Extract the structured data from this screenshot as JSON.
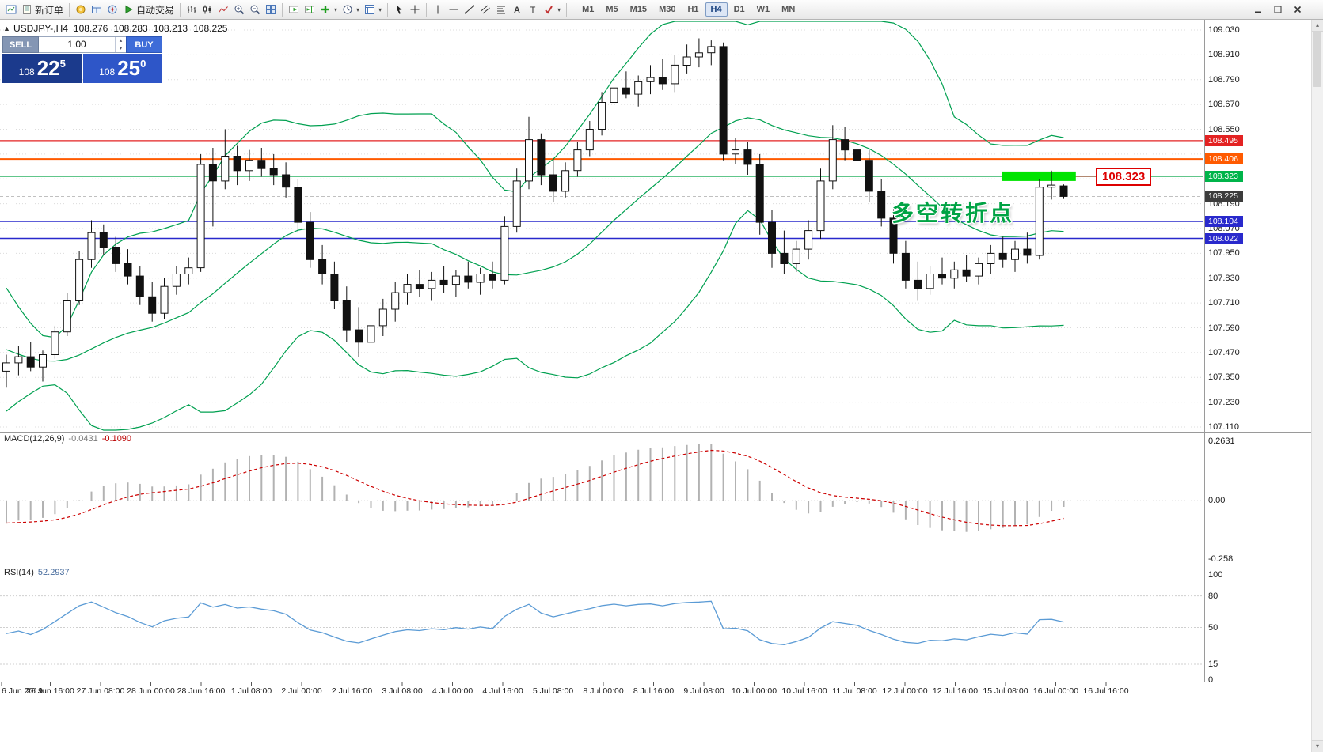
{
  "glyphs": {
    "collapse": "▲",
    "up": "▴",
    "down": "▾"
  },
  "toolbar": {
    "items": [
      {
        "t": "btn",
        "name": "chart-window-button",
        "icon": "app"
      },
      {
        "t": "btn",
        "name": "new-order-button",
        "icon": "new-order",
        "label": "新订单"
      },
      {
        "t": "sep"
      },
      {
        "t": "btn",
        "name": "market-watch-button",
        "icon": "market-watch"
      },
      {
        "t": "btn",
        "name": "data-window-button",
        "icon": "data-window"
      },
      {
        "t": "btn",
        "name": "navigator-button",
        "icon": "navigator"
      },
      {
        "t": "btn",
        "name": "autotrading-button",
        "icon": "autotrading",
        "label": "自动交易"
      },
      {
        "t": "sep"
      },
      {
        "t": "btn",
        "name": "bar-chart-button",
        "icon": "bar-chart"
      },
      {
        "t": "btn",
        "name": "candlestick-chart-button",
        "icon": "candles"
      },
      {
        "t": "btn",
        "name": "line-chart-button",
        "icon": "line-chart"
      },
      {
        "t": "btn",
        "name": "zoom-in-button",
        "icon": "zoom-in"
      },
      {
        "t": "btn",
        "name": "zoom-out-button",
        "icon": "zoom-out"
      },
      {
        "t": "btn",
        "name": "tile-windows-button",
        "icon": "tile"
      },
      {
        "t": "sep"
      },
      {
        "t": "btn",
        "name": "auto-scroll-button",
        "icon": "auto-scroll"
      },
      {
        "t": "btn",
        "name": "chart-shift-button",
        "icon": "chart-shift"
      },
      {
        "t": "btn",
        "name": "indicators-button",
        "icon": "indicators",
        "caret": true
      },
      {
        "t": "btn",
        "name": "periods-button",
        "icon": "periods",
        "caret": true
      },
      {
        "t": "btn",
        "name": "templates-button",
        "icon": "templates",
        "caret": true
      },
      {
        "t": "sep"
      },
      {
        "t": "btn",
        "name": "cursor-button",
        "icon": "cursor"
      },
      {
        "t": "btn",
        "name": "crosshair-button",
        "icon": "crosshair"
      },
      {
        "t": "sep"
      },
      {
        "t": "btn",
        "name": "vertical-line-button",
        "icon": "vline"
      },
      {
        "t": "btn",
        "name": "horizontal-line-button",
        "icon": "hline"
      },
      {
        "t": "btn",
        "name": "trendline-button",
        "icon": "trendline"
      },
      {
        "t": "btn",
        "name": "channel-button",
        "icon": "channel"
      },
      {
        "t": "btn",
        "name": "fibonacci-button",
        "icon": "fibo"
      },
      {
        "t": "btn",
        "name": "text-button",
        "icon": "text"
      },
      {
        "t": "btn",
        "name": "label-button",
        "icon": "label"
      },
      {
        "t": "btn",
        "name": "arrows-button",
        "icon": "arrows",
        "caret": true
      },
      {
        "t": "sep"
      }
    ],
    "timeframes": [
      "M1",
      "M5",
      "M15",
      "M30",
      "H1",
      "H4",
      "D1",
      "W1",
      "MN"
    ],
    "active_timeframe": "H4",
    "window_controls": [
      {
        "name": "window-minimize-button",
        "icon": "minimize"
      },
      {
        "name": "window-maximize-button",
        "icon": "maximize"
      },
      {
        "name": "window-close-button",
        "icon": "close"
      }
    ]
  },
  "chart": {
    "header": {
      "symbol": "USDJPY-,H4",
      "open": "108.276",
      "high": "108.283",
      "low": "108.213",
      "close": "108.225"
    },
    "trade_panel": {
      "sell_label": "SELL",
      "buy_label": "BUY",
      "volume": "1.00",
      "sell_price_prefix": "108",
      "sell_price_main": "22",
      "sell_price_sup": "5",
      "buy_price_prefix": "108",
      "buy_price_main": "25",
      "buy_price_sup": "0"
    }
  },
  "chart_data": {
    "type": "candlestick",
    "symbol": "USDJPY-",
    "timeframe": "H4",
    "ylim": [
      107.11,
      109.03
    ],
    "ystep": 0.12,
    "current_price": 108.225,
    "bollinger": {
      "period": 20,
      "deviation": 2,
      "color": "#00a050"
    },
    "pre_history_closes": [
      107.7,
      107.75,
      107.8,
      107.9,
      108.0,
      108.1,
      108.2,
      108.15,
      108.05,
      107.95,
      108.0,
      107.9,
      107.8,
      107.7,
      107.6,
      107.55,
      107.5,
      107.45,
      107.4,
      107.38,
      107.42,
      107.45,
      107.4,
      107.36,
      107.34,
      107.38,
      107.42,
      107.44,
      107.4,
      107.38
    ],
    "candles": [
      [
        107.38,
        107.46,
        107.3,
        107.42
      ],
      [
        107.42,
        107.5,
        107.36,
        107.45
      ],
      [
        107.45,
        107.52,
        107.38,
        107.4
      ],
      [
        107.4,
        107.48,
        107.33,
        107.46
      ],
      [
        107.46,
        107.6,
        107.44,
        107.57
      ],
      [
        107.57,
        107.76,
        107.55,
        107.72
      ],
      [
        107.72,
        107.96,
        107.7,
        107.92
      ],
      [
        107.92,
        108.11,
        107.88,
        108.05
      ],
      [
        108.05,
        108.09,
        107.94,
        107.98
      ],
      [
        107.98,
        108.03,
        107.86,
        107.9
      ],
      [
        107.9,
        107.97,
        107.8,
        107.84
      ],
      [
        107.84,
        107.89,
        107.7,
        107.74
      ],
      [
        107.74,
        107.81,
        107.62,
        107.66
      ],
      [
        107.66,
        107.83,
        107.63,
        107.79
      ],
      [
        107.79,
        107.89,
        107.75,
        107.85
      ],
      [
        107.85,
        107.93,
        107.8,
        107.88
      ],
      [
        107.88,
        108.43,
        107.86,
        108.38
      ],
      [
        108.38,
        108.46,
        108.08,
        108.3
      ],
      [
        108.3,
        108.55,
        108.26,
        108.42
      ],
      [
        108.42,
        108.47,
        108.28,
        108.35
      ],
      [
        108.35,
        108.45,
        108.3,
        108.4
      ],
      [
        108.4,
        108.46,
        108.32,
        108.36
      ],
      [
        108.36,
        108.43,
        108.28,
        108.33
      ],
      [
        108.33,
        108.39,
        108.22,
        108.27
      ],
      [
        108.27,
        108.31,
        108.05,
        108.1
      ],
      [
        108.1,
        108.15,
        107.88,
        107.92
      ],
      [
        107.92,
        107.99,
        107.8,
        107.85
      ],
      [
        107.85,
        107.91,
        107.68,
        107.72
      ],
      [
        107.72,
        107.79,
        107.52,
        107.58
      ],
      [
        107.58,
        107.69,
        107.45,
        107.52
      ],
      [
        107.52,
        107.65,
        107.48,
        107.6
      ],
      [
        107.6,
        107.73,
        107.55,
        107.68
      ],
      [
        107.68,
        107.81,
        107.62,
        107.76
      ],
      [
        107.76,
        107.85,
        107.7,
        107.8
      ],
      [
        107.8,
        107.87,
        107.74,
        107.78
      ],
      [
        107.78,
        107.86,
        107.72,
        107.82
      ],
      [
        107.82,
        107.89,
        107.76,
        107.8
      ],
      [
        107.8,
        107.87,
        107.74,
        107.84
      ],
      [
        107.84,
        107.91,
        107.78,
        107.81
      ],
      [
        107.81,
        107.88,
        107.75,
        107.85
      ],
      [
        107.85,
        107.91,
        107.78,
        107.82
      ],
      [
        107.82,
        108.13,
        107.8,
        108.08
      ],
      [
        108.08,
        108.36,
        108.05,
        108.3
      ],
      [
        108.3,
        108.61,
        108.26,
        108.5
      ],
      [
        108.5,
        108.53,
        108.28,
        108.33
      ],
      [
        108.33,
        108.41,
        108.2,
        108.25
      ],
      [
        108.25,
        108.39,
        108.22,
        108.35
      ],
      [
        108.35,
        108.49,
        108.32,
        108.45
      ],
      [
        108.45,
        108.59,
        108.42,
        108.55
      ],
      [
        108.55,
        108.73,
        108.52,
        108.68
      ],
      [
        108.68,
        108.79,
        108.62,
        108.75
      ],
      [
        108.75,
        108.83,
        108.7,
        108.72
      ],
      [
        108.72,
        108.81,
        108.66,
        108.78
      ],
      [
        108.78,
        108.86,
        108.72,
        108.8
      ],
      [
        108.8,
        108.89,
        108.74,
        108.77
      ],
      [
        108.77,
        108.91,
        108.73,
        108.86
      ],
      [
        108.86,
        108.96,
        108.82,
        108.9
      ],
      [
        108.9,
        108.99,
        108.85,
        108.92
      ],
      [
        108.92,
        108.98,
        108.86,
        108.95
      ],
      [
        108.95,
        108.97,
        108.4,
        108.43
      ],
      [
        108.43,
        108.51,
        108.38,
        108.45
      ],
      [
        108.45,
        108.49,
        108.33,
        108.38
      ],
      [
        108.38,
        108.43,
        108.04,
        108.1
      ],
      [
        108.1,
        108.16,
        107.88,
        107.95
      ],
      [
        107.95,
        108.06,
        107.85,
        107.9
      ],
      [
        107.9,
        108.01,
        107.86,
        107.97
      ],
      [
        107.97,
        108.11,
        107.92,
        108.06
      ],
      [
        108.06,
        108.36,
        108.02,
        108.3
      ],
      [
        108.3,
        108.57,
        108.26,
        108.5
      ],
      [
        108.5,
        108.56,
        108.4,
        108.45
      ],
      [
        108.45,
        108.53,
        108.35,
        108.4
      ],
      [
        108.4,
        108.45,
        108.2,
        108.25
      ],
      [
        108.25,
        108.31,
        108.08,
        108.12
      ],
      [
        108.12,
        108.17,
        107.9,
        107.95
      ],
      [
        107.95,
        108.01,
        107.78,
        107.82
      ],
      [
        107.82,
        107.91,
        107.72,
        107.78
      ],
      [
        107.78,
        107.89,
        107.75,
        107.85
      ],
      [
        107.85,
        107.93,
        107.8,
        107.83
      ],
      [
        107.83,
        107.91,
        107.78,
        107.87
      ],
      [
        107.87,
        107.94,
        107.81,
        107.84
      ],
      [
        107.84,
        107.93,
        107.8,
        107.9
      ],
      [
        107.9,
        107.99,
        107.85,
        107.95
      ],
      [
        107.95,
        108.03,
        107.88,
        107.92
      ],
      [
        107.92,
        108.01,
        107.86,
        107.97
      ],
      [
        107.97,
        108.05,
        107.9,
        107.94
      ],
      [
        107.94,
        108.31,
        107.92,
        108.27
      ],
      [
        108.27,
        108.35,
        108.21,
        108.28
      ],
      [
        108.276,
        108.283,
        108.213,
        108.225
      ]
    ],
    "hlines": [
      {
        "price": 108.495,
        "color": "#e32222",
        "width": 1.2
      },
      {
        "price": 108.406,
        "color": "#ff5a00",
        "width": 2
      },
      {
        "price": 108.323,
        "color": "#00a344",
        "width": 1.4
      },
      {
        "price": 108.104,
        "color": "#2929cc",
        "width": 1.4
      },
      {
        "price": 108.022,
        "color": "#2929cc",
        "width": 1.4
      }
    ],
    "price_badges": [
      {
        "text": "108.495",
        "price": 108.495,
        "color": "#e32222"
      },
      {
        "text": "108.406",
        "price": 108.406,
        "color": "#ff5a00"
      },
      {
        "text": "108.323",
        "price": 108.323,
        "color": "#00b44a"
      },
      {
        "text": "108.225",
        "price": 108.225,
        "color": "#3c3c3c"
      },
      {
        "text": "108.104",
        "price": 108.104,
        "color": "#2929cc"
      },
      {
        "text": "108.022",
        "price": 108.022,
        "color": "#2929cc"
      }
    ],
    "highlight_rect": {
      "from_idx": 81.9,
      "to_idx": 88.0,
      "price": 108.323,
      "half_h": 6,
      "color": "#00e400"
    },
    "callout": {
      "text": "108.323",
      "color": "#dd0000"
    },
    "annotation": {
      "text": "多空转折点",
      "color": "#00a344"
    },
    "macd": {
      "label": "MACD(12,26,9)",
      "value1": "-0.0431",
      "value2": "-0.1090",
      "fast": 12,
      "slow": 26,
      "signal": 9,
      "scale": [
        {
          "label": "0.2631",
          "v": 0.2631
        },
        {
          "label": "0.00",
          "v": 0
        },
        {
          "label": "-0.258",
          "v": -0.258
        }
      ]
    },
    "rsi": {
      "label": "RSI(14)",
      "value": "52.2937",
      "period": 14,
      "levels": [
        80,
        50,
        15
      ],
      "scale": [
        {
          "label": "100",
          "v": 100
        },
        {
          "label": "80",
          "v": 80
        },
        {
          "label": "50",
          "v": 50
        },
        {
          "label": "15",
          "v": 15
        },
        {
          "label": "0",
          "v": 0
        }
      ]
    },
    "time_labels": [
      "6 Jun 2019",
      "26 Jun 16:00",
      "27 Jun 08:00",
      "28 Jun 00:00",
      "28 Jun 16:00",
      "1 Jul 08:00",
      "2 Jul 00:00",
      "2 Jul 16:00",
      "3 Jul 08:00",
      "4 Jul 00:00",
      "4 Jul 16:00",
      "5 Jul 08:00",
      "8 Jul 00:00",
      "8 Jul 16:00",
      "9 Jul 08:00",
      "10 Jul 00:00",
      "10 Jul 16:00",
      "11 Jul 08:00",
      "12 Jul 00:00",
      "12 Jul 16:00",
      "15 Jul 08:00",
      "16 Jul 00:00",
      "16 Jul 16:00"
    ]
  }
}
